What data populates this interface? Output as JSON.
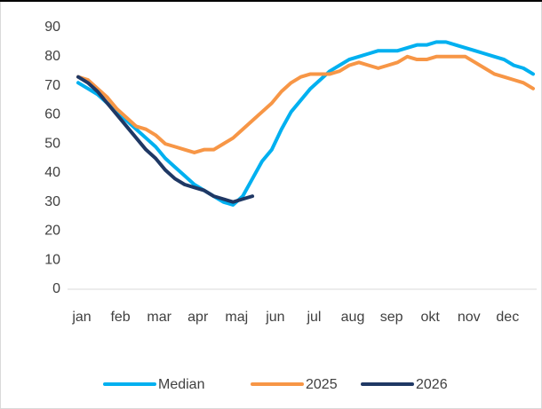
{
  "chart_data": {
    "type": "line",
    "categories": [
      "jan",
      null,
      null,
      null,
      "feb",
      null,
      null,
      null,
      "mar",
      null,
      null,
      null,
      "apr",
      null,
      null,
      null,
      "maj",
      null,
      null,
      null,
      "jun",
      null,
      null,
      null,
      "jul",
      null,
      null,
      null,
      "aug",
      null,
      null,
      null,
      "sep",
      null,
      null,
      null,
      "okt",
      null,
      null,
      null,
      "nov",
      null,
      null,
      null,
      "dec",
      null,
      null,
      null
    ],
    "series": [
      {
        "name": "Median",
        "color": "#00b0f0",
        "values": [
          71,
          69,
          67,
          64,
          61,
          58,
          55,
          52,
          49,
          45,
          42,
          39,
          36,
          34,
          32,
          30,
          29,
          32,
          38,
          44,
          48,
          55,
          61,
          65,
          69,
          72,
          75,
          77,
          79,
          80,
          81,
          82,
          82,
          82,
          83,
          84,
          84,
          85,
          85,
          84,
          83,
          82,
          81,
          80,
          79,
          77,
          76,
          74
        ]
      },
      {
        "name": "2025",
        "color": "#f79646",
        "values": [
          73,
          72,
          69,
          66,
          62,
          59,
          56,
          55,
          53,
          50,
          49,
          48,
          47,
          48,
          48,
          50,
          52,
          55,
          58,
          61,
          64,
          68,
          71,
          73,
          74,
          74,
          74,
          75,
          77,
          78,
          77,
          76,
          77,
          78,
          80,
          79,
          79,
          80,
          80,
          80,
          80,
          78,
          76,
          74,
          73,
          72,
          71,
          69
        ]
      },
      {
        "name": "2026",
        "color": "#1f3864",
        "values": [
          73,
          71,
          68,
          64,
          60,
          56,
          52,
          48,
          45,
          41,
          38,
          36,
          35,
          34,
          32,
          31,
          30,
          31,
          32,
          null,
          null,
          null,
          null,
          null,
          null,
          null,
          null,
          null,
          null,
          null,
          null,
          null,
          null,
          null,
          null,
          null,
          null,
          null,
          null,
          null,
          null,
          null,
          null,
          null,
          null,
          null,
          null,
          null
        ]
      }
    ],
    "ylim": [
      0,
      90
    ],
    "yticks": [
      0,
      10,
      20,
      30,
      40,
      50,
      60,
      70,
      80,
      90
    ],
    "grid": false,
    "legend": "bottom"
  }
}
